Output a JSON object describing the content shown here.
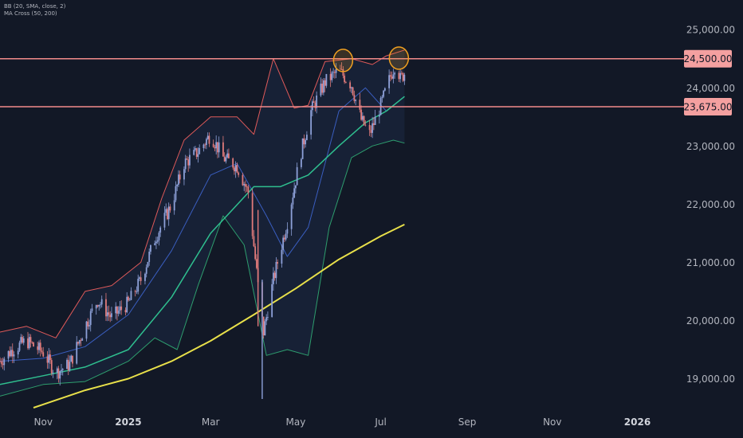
{
  "legend": {
    "bb": "BB (20, SMA, close, 2)",
    "ma": "MA Cross (50, 200)"
  },
  "colors": {
    "background": "#121826",
    "up_candle": "#8da0d8",
    "down_candle": "#e07a7a",
    "bb_upper": "#e05a5a",
    "bb_basis": "#3a5ec0",
    "bb_lower": "#2e9e6e",
    "ma50": "#2fbf8f",
    "ma200": "#e8e04a",
    "hline": "#f28b8b",
    "circle": "#f0a020"
  },
  "chart_data": {
    "type": "candlestick",
    "y_axis": {
      "min": 18500,
      "max": 25400,
      "ticks": [
        19000,
        20000,
        21000,
        22000,
        23000,
        24000,
        25000
      ],
      "tick_labels": [
        "19,000.00",
        "20,000.00",
        "21,000.00",
        "22,000.00",
        "23,000.00",
        "24,000.00",
        "25,000.00"
      ]
    },
    "x_axis": {
      "start": "2024-10-01",
      "end": "2026-01-31",
      "ticks": [
        {
          "date": "2024-11-01",
          "label": "Nov",
          "bold": false
        },
        {
          "date": "2025-01-01",
          "label": "2025",
          "bold": true
        },
        {
          "date": "2025-03-01",
          "label": "Mar",
          "bold": false
        },
        {
          "date": "2025-05-01",
          "label": "May",
          "bold": false
        },
        {
          "date": "2025-07-01",
          "label": "Jul",
          "bold": false
        },
        {
          "date": "2025-09-01",
          "label": "Sep",
          "bold": false
        },
        {
          "date": "2025-11-01",
          "label": "Nov",
          "bold": false
        },
        {
          "date": "2026-01-01",
          "label": "2026",
          "bold": true
        }
      ]
    },
    "price_path": [
      {
        "date": "2024-10-01",
        "price": 19300
      },
      {
        "date": "2024-10-10",
        "price": 19500
      },
      {
        "date": "2024-10-20",
        "price": 19650
      },
      {
        "date": "2024-11-01",
        "price": 19450
      },
      {
        "date": "2024-11-10",
        "price": 19100
      },
      {
        "date": "2024-11-20",
        "price": 19250
      },
      {
        "date": "2024-12-01",
        "price": 19900
      },
      {
        "date": "2024-12-10",
        "price": 20350
      },
      {
        "date": "2024-12-20",
        "price": 20050
      },
      {
        "date": "2025-01-01",
        "price": 20300
      },
      {
        "date": "2025-01-10",
        "price": 20700
      },
      {
        "date": "2025-01-20",
        "price": 21400
      },
      {
        "date": "2025-02-01",
        "price": 22000
      },
      {
        "date": "2025-02-10",
        "price": 22700
      },
      {
        "date": "2025-02-20",
        "price": 22900
      },
      {
        "date": "2025-03-01",
        "price": 23200
      },
      {
        "date": "2025-03-10",
        "price": 22800
      },
      {
        "date": "2025-03-20",
        "price": 22650
      },
      {
        "date": "2025-03-28",
        "price": 22200
      },
      {
        "date": "2025-04-04",
        "price": 20600
      },
      {
        "date": "2025-04-08",
        "price": 19800
      },
      {
        "date": "2025-04-15",
        "price": 20700
      },
      {
        "date": "2025-04-25",
        "price": 21700
      },
      {
        "date": "2025-05-05",
        "price": 22900
      },
      {
        "date": "2025-05-12",
        "price": 23600
      },
      {
        "date": "2025-05-22",
        "price": 24100
      },
      {
        "date": "2025-06-01",
        "price": 24300
      },
      {
        "date": "2025-06-10",
        "price": 24050
      },
      {
        "date": "2025-06-17",
        "price": 23450
      },
      {
        "date": "2025-06-23",
        "price": 23200
      },
      {
        "date": "2025-07-01",
        "price": 23700
      },
      {
        "date": "2025-07-08",
        "price": 24200
      },
      {
        "date": "2025-07-12",
        "price": 24450
      },
      {
        "date": "2025-07-15",
        "price": 24150
      },
      {
        "date": "2025-07-18",
        "price": 24250
      }
    ],
    "overlays": {
      "bb_upper": [
        {
          "date": "2024-10-01",
          "value": 19800
        },
        {
          "date": "2024-10-20",
          "value": 19900
        },
        {
          "date": "2024-11-10",
          "value": 19700
        },
        {
          "date": "2024-12-01",
          "value": 20500
        },
        {
          "date": "2024-12-20",
          "value": 20600
        },
        {
          "date": "2025-01-10",
          "value": 21000
        },
        {
          "date": "2025-01-25",
          "value": 22100
        },
        {
          "date": "2025-02-10",
          "value": 23100
        },
        {
          "date": "2025-03-01",
          "value": 23500
        },
        {
          "date": "2025-03-20",
          "value": 23500
        },
        {
          "date": "2025-04-01",
          "value": 23200
        },
        {
          "date": "2025-04-15",
          "value": 24500
        },
        {
          "date": "2025-04-30",
          "value": 23650
        },
        {
          "date": "2025-05-10",
          "value": 23700
        },
        {
          "date": "2025-05-22",
          "value": 24450
        },
        {
          "date": "2025-06-10",
          "value": 24500
        },
        {
          "date": "2025-06-25",
          "value": 24400
        },
        {
          "date": "2025-07-05",
          "value": 24550
        },
        {
          "date": "2025-07-18",
          "value": 24650
        }
      ],
      "bb_basis": [
        {
          "date": "2024-10-01",
          "value": 19300
        },
        {
          "date": "2024-11-01",
          "value": 19350
        },
        {
          "date": "2024-12-01",
          "value": 19550
        },
        {
          "date": "2025-01-01",
          "value": 20100
        },
        {
          "date": "2025-02-01",
          "value": 21200
        },
        {
          "date": "2025-03-01",
          "value": 22500
        },
        {
          "date": "2025-03-20",
          "value": 22700
        },
        {
          "date": "2025-04-10",
          "value": 21800
        },
        {
          "date": "2025-04-25",
          "value": 21100
        },
        {
          "date": "2025-05-10",
          "value": 21600
        },
        {
          "date": "2025-06-01",
          "value": 23600
        },
        {
          "date": "2025-06-20",
          "value": 24000
        },
        {
          "date": "2025-07-05",
          "value": 23600
        },
        {
          "date": "2025-07-18",
          "value": 23850
        }
      ],
      "bb_lower": [
        {
          "date": "2024-10-01",
          "value": 18700
        },
        {
          "date": "2024-11-01",
          "value": 18900
        },
        {
          "date": "2024-12-01",
          "value": 18950
        },
        {
          "date": "2025-01-01",
          "value": 19300
        },
        {
          "date": "2025-01-20",
          "value": 19700
        },
        {
          "date": "2025-02-05",
          "value": 19500
        },
        {
          "date": "2025-02-20",
          "value": 20600
        },
        {
          "date": "2025-03-10",
          "value": 21800
        },
        {
          "date": "2025-03-25",
          "value": 21300
        },
        {
          "date": "2025-04-10",
          "value": 19400
        },
        {
          "date": "2025-04-25",
          "value": 19500
        },
        {
          "date": "2025-05-10",
          "value": 19400
        },
        {
          "date": "2025-05-25",
          "value": 21600
        },
        {
          "date": "2025-06-10",
          "value": 22800
        },
        {
          "date": "2025-06-25",
          "value": 23000
        },
        {
          "date": "2025-07-10",
          "value": 23100
        },
        {
          "date": "2025-07-18",
          "value": 23050
        }
      ],
      "ma50": [
        {
          "date": "2024-10-01",
          "value": 18900
        },
        {
          "date": "2024-11-01",
          "value": 19050
        },
        {
          "date": "2024-12-01",
          "value": 19200
        },
        {
          "date": "2025-01-01",
          "value": 19500
        },
        {
          "date": "2025-02-01",
          "value": 20400
        },
        {
          "date": "2025-03-01",
          "value": 21500
        },
        {
          "date": "2025-04-01",
          "value": 22300
        },
        {
          "date": "2025-04-20",
          "value": 22300
        },
        {
          "date": "2025-05-10",
          "value": 22500
        },
        {
          "date": "2025-06-01",
          "value": 23000
        },
        {
          "date": "2025-06-20",
          "value": 23400
        },
        {
          "date": "2025-07-05",
          "value": 23600
        },
        {
          "date": "2025-07-18",
          "value": 23850
        }
      ],
      "ma200": [
        {
          "date": "2024-10-25",
          "value": 18500
        },
        {
          "date": "2024-12-01",
          "value": 18800
        },
        {
          "date": "2025-01-01",
          "value": 19000
        },
        {
          "date": "2025-02-01",
          "value": 19300
        },
        {
          "date": "2025-03-01",
          "value": 19650
        },
        {
          "date": "2025-04-01",
          "value": 20100
        },
        {
          "date": "2025-05-01",
          "value": 20550
        },
        {
          "date": "2025-06-01",
          "value": 21050
        },
        {
          "date": "2025-07-01",
          "value": 21450
        },
        {
          "date": "2025-07-18",
          "value": 21650
        }
      ]
    },
    "horizontal_lines": [
      {
        "value": 24500,
        "label": "24,500.00"
      },
      {
        "value": 23675,
        "label": "23,675.00"
      }
    ],
    "highlight_circles": [
      {
        "date": "2025-06-04",
        "value": 24470
      },
      {
        "date": "2025-07-14",
        "value": 24510
      }
    ],
    "grid": false
  }
}
